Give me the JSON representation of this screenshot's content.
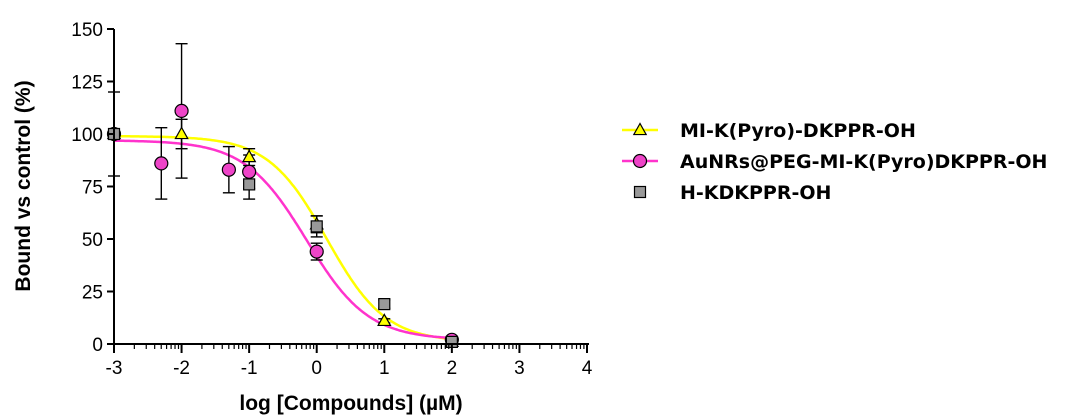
{
  "chart_data": {
    "type": "scatter",
    "xlabel": "log [Compounds] (µM)",
    "ylabel": "Bound vs control (%)",
    "xlim": [
      -3,
      4
    ],
    "ylim": [
      0,
      150
    ],
    "xticks": [
      -3,
      -2,
      -1,
      0,
      1,
      2,
      3,
      4
    ],
    "yticks": [
      0,
      25,
      50,
      75,
      100,
      125,
      150
    ],
    "x_scale": "log10 concentration with minor log ticks",
    "grid": false,
    "legend_position": "right",
    "series": [
      {
        "name": "MI-K(Pyro)-DKPPR-OH",
        "color": "#ffff00",
        "marker": "triangle",
        "marker_fill": "#ffff00",
        "points": [
          {
            "x": -3,
            "y": 100,
            "err": 0
          },
          {
            "x": -2,
            "y": 100,
            "err": 7
          },
          {
            "x": -1,
            "y": 89,
            "err": 4
          },
          {
            "x": 0,
            "y": 57,
            "err": 4
          },
          {
            "x": 1,
            "y": 11,
            "err": 1
          },
          {
            "x": 2,
            "y": 1,
            "err": 1
          }
        ],
        "fit": {
          "top": 99,
          "bottom": 1,
          "log_ic50": 0.15,
          "hill": 1.0
        }
      },
      {
        "name": "AuNRs@PEG-MI-K(Pyro)DKPPR-OH",
        "color": "#ff33cc",
        "marker": "circle",
        "marker_fill": "#ee44c8",
        "points": [
          {
            "x": -3,
            "y": 100,
            "err": 20
          },
          {
            "x": -2.3,
            "y": 86,
            "err": 17
          },
          {
            "x": -2,
            "y": 111,
            "err": 32
          },
          {
            "x": -1.3,
            "y": 83,
            "err": 11
          },
          {
            "x": -1,
            "y": 82,
            "err": 8
          },
          {
            "x": 0,
            "y": 44,
            "err": 4
          },
          {
            "x": 2,
            "y": 2,
            "err": 1
          }
        ],
        "fit": {
          "top": 97,
          "bottom": 2,
          "log_ic50": -0.15,
          "hill": 0.95
        }
      },
      {
        "name": "H-KDKPPR-OH",
        "color": "#999999",
        "marker": "square",
        "marker_fill": "#999999",
        "points": [
          {
            "x": -3,
            "y": 100,
            "err": 0
          },
          {
            "x": -1,
            "y": 76,
            "err": 7
          },
          {
            "x": 0,
            "y": 56,
            "err": 5
          },
          {
            "x": 1,
            "y": 19,
            "err": 2
          },
          {
            "x": 2,
            "y": 1,
            "err": 1
          }
        ]
      }
    ]
  }
}
